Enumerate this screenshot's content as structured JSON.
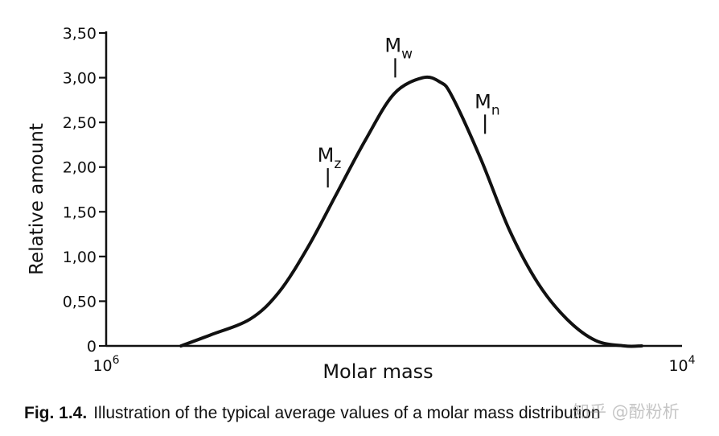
{
  "chart_data": {
    "type": "line",
    "xlabel": "Molar mass",
    "ylabel": "Relative amount",
    "ylim": [
      0,
      3.5
    ],
    "y_ticks": [
      {
        "value": 0,
        "label": "0"
      },
      {
        "value": 0.5,
        "label": "0,50"
      },
      {
        "value": 1.0,
        "label": "1,00"
      },
      {
        "value": 1.5,
        "label": "1,50"
      },
      {
        "value": 2.0,
        "label": "2,00"
      },
      {
        "value": 2.5,
        "label": "2,50"
      },
      {
        "value": 3.0,
        "label": "3,00"
      },
      {
        "value": 3.5,
        "label": "3,50"
      }
    ],
    "x_tick_labels": {
      "left": "10",
      "left_sup": "6",
      "right": "10",
      "right_sup": "4"
    },
    "xlim": [
      0,
      1
    ],
    "grid": false,
    "legend": "none",
    "series": [
      {
        "x": [
          0.13,
          0.18,
          0.25,
          0.3,
          0.35,
          0.4,
          0.45,
          0.5,
          0.55,
          0.58,
          0.6,
          0.65,
          0.7,
          0.75,
          0.8,
          0.85,
          0.9,
          0.93
        ],
        "y": [
          0.0,
          0.12,
          0.3,
          0.6,
          1.1,
          1.7,
          2.3,
          2.82,
          3.0,
          2.95,
          2.8,
          2.1,
          1.3,
          0.7,
          0.3,
          0.06,
          0.0,
          0.0
        ]
      }
    ],
    "annotations": [
      {
        "label": "M",
        "sub": "z",
        "x": 0.385,
        "y": 1.7
      },
      {
        "label": "M",
        "sub": "w",
        "x": 0.502,
        "y": 2.93
      },
      {
        "label": "M",
        "sub": "n",
        "x": 0.658,
        "y": 2.3
      }
    ]
  },
  "caption": {
    "lead": "Fig. 1.4.",
    "text": "Illustration of the typical average values of a molar mass distribution"
  },
  "watermark": "知乎 @酚粉析"
}
